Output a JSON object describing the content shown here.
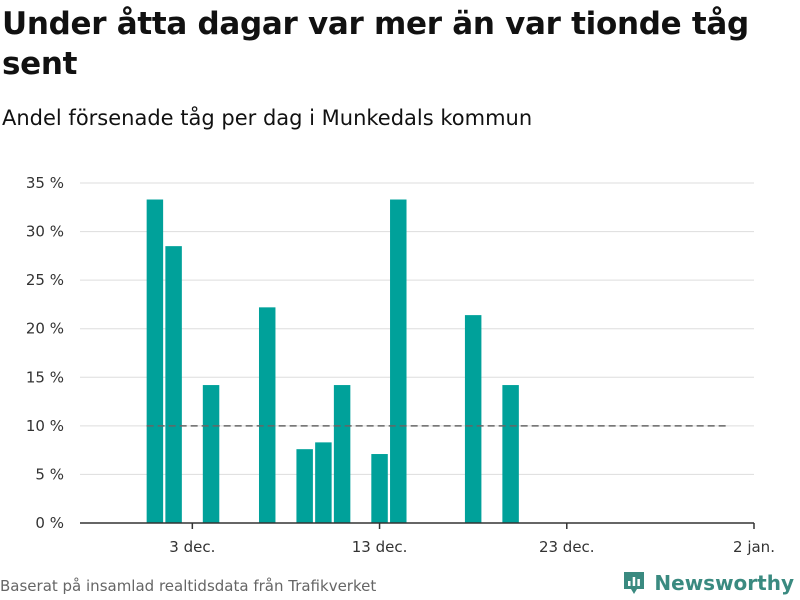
{
  "header": {
    "title": "Under åtta dagar var mer än var tionde tåg sent",
    "subtitle": "Andel försenade tåg per dag i Munkedals kommun"
  },
  "footer": {
    "source": "Baserat på insamlad realtidsdata från Trafikverket",
    "brand": "Newsworthy"
  },
  "colors": {
    "bar": "#00a19a",
    "reference_line": "#666666",
    "grid": "#dddddd",
    "brand": "#3a8a80"
  },
  "chart_data": {
    "type": "bar",
    "title": "Under åtta dagar var mer än var tionde tåg sent",
    "subtitle": "Andel försenade tåg per dag i Munkedals kommun",
    "xlabel": "",
    "ylabel": "",
    "ylim": [
      0,
      35
    ],
    "xlim": [
      "2025-11-27",
      "2026-01-02"
    ],
    "y_ticks": [
      0,
      5,
      10,
      15,
      20,
      25,
      30,
      35
    ],
    "y_tick_labels": [
      "0 %",
      "5 %",
      "10 %",
      "15 %",
      "20 %",
      "25 %",
      "30 %",
      "35 %"
    ],
    "x_ticks": [
      "2025-12-03",
      "2025-12-13",
      "2025-12-23",
      "2026-01-02"
    ],
    "x_tick_labels": [
      "3 dec.",
      "13 dec.",
      "23 dec.",
      "2 jan."
    ],
    "grid": true,
    "reference_line": {
      "y": 10,
      "x_from": "2025-12-01",
      "x_to": "2026-01-01",
      "style": "dashed"
    },
    "series": [
      {
        "dates": [
          "2025-12-01",
          "2025-12-02",
          "2025-12-04",
          "2025-12-07",
          "2025-12-09",
          "2025-12-10",
          "2025-12-11",
          "2025-12-13",
          "2025-12-14",
          "2025-12-18",
          "2025-12-20"
        ],
        "values": [
          33.3,
          28.5,
          14.2,
          22.2,
          7.6,
          8.3,
          14.2,
          7.1,
          33.3,
          21.4,
          14.2
        ]
      }
    ]
  }
}
